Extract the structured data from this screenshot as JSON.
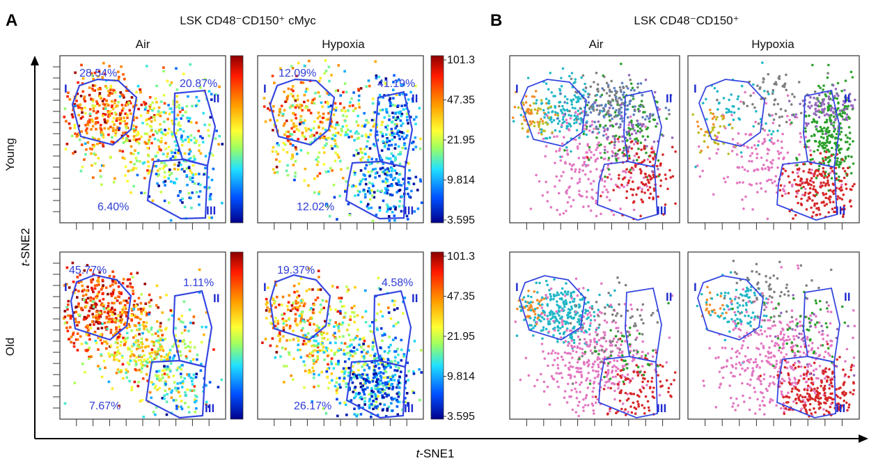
{
  "panel_a": {
    "label": "A",
    "title": "LSK CD48⁻CD150⁺ cMyc",
    "col_air": "Air",
    "col_hypoxia": "Hypoxia",
    "row_young": "Young",
    "row_old": "Old",
    "colorbar_ticks": [
      "101.3",
      "47.35",
      "21.95",
      "9.814",
      "3.595"
    ]
  },
  "panel_b": {
    "label": "B",
    "title": "LSK CD48⁻CD150⁺",
    "col_air": "Air",
    "col_hypoxia": "Hypoxia"
  },
  "axes": {
    "x_label_italic": "t",
    "x_label_rest": "-SNE1",
    "y_label_italic": "t",
    "y_label_rest": "-SNE2"
  },
  "gate_labels": [
    "I",
    "II",
    "III"
  ],
  "chart_data": [
    {
      "type": "scatter",
      "title": "LSK CD48⁻CD150⁺ cMyc",
      "xlabel": "t-SNE1",
      "ylabel": "t-SNE2",
      "colorbar_scale": "log",
      "colorbar_ticks": [
        101.3,
        47.35,
        21.95,
        9.814,
        3.595
      ],
      "panels": [
        {
          "row": "Young",
          "column": "Air",
          "gate_percent": {
            "I": "28.54%",
            "II": "20.87%",
            "III": "6.40%"
          }
        },
        {
          "row": "Young",
          "column": "Hypoxia",
          "gate_percent": {
            "I": "12.09%",
            "II": "41.19%",
            "III": "12.02%"
          }
        },
        {
          "row": "Old",
          "column": "Air",
          "gate_percent": {
            "I": "45.77%",
            "II": "1.11%",
            "III": "7.67%"
          }
        },
        {
          "row": "Old",
          "column": "Hypoxia",
          "gate_percent": {
            "I": "19.37%",
            "II": "4.58%",
            "III": "26.17%"
          }
        }
      ]
    },
    {
      "type": "scatter",
      "title": "LSK CD48⁻CD150⁺",
      "xlabel": "t-SNE1",
      "ylabel": "t-SNE2",
      "cluster_colors": [
        "#f28c28",
        "#22b7c8",
        "#e377c2",
        "#2ca02c",
        "#d62728",
        "#5b7ec0",
        "#9467bd",
        "#7f7f7f",
        "#bcbd22"
      ],
      "panels": [
        {
          "row": "Young",
          "column": "Air"
        },
        {
          "row": "Young",
          "column": "Hypoxia"
        },
        {
          "row": "Old",
          "column": "Air"
        },
        {
          "row": "Old",
          "column": "Hypoxia"
        }
      ]
    }
  ]
}
